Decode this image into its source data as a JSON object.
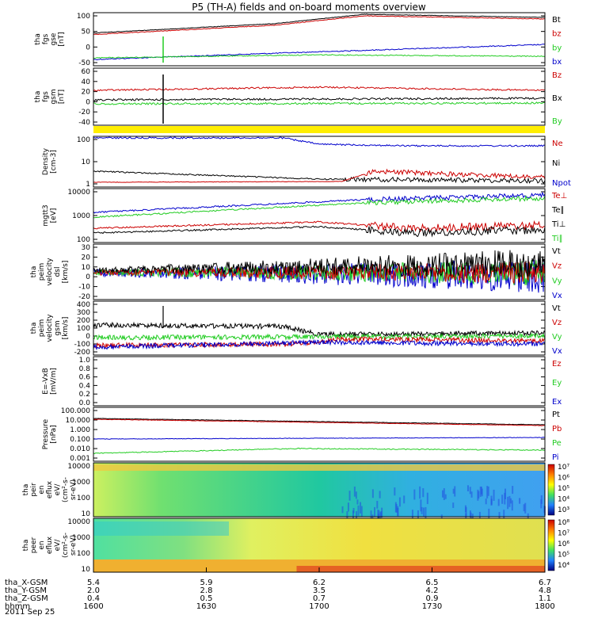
{
  "title": "P5 (TH-A) fields and on-board moments overview",
  "date": "2011 Sep 25",
  "colors": {
    "black": "#000000",
    "red": "#cc0000",
    "green": "#22cc22",
    "blue": "#0000cc",
    "yellow": "#ffee00"
  },
  "panels": [
    {
      "id": "fgs_gse",
      "ylabel": [
        "tha",
        "fgs",
        "gse",
        "[nT]"
      ],
      "yticks": [
        "100",
        "50",
        "0",
        "-50"
      ],
      "legend": [
        {
          "text": "Bt",
          "color": "black"
        },
        {
          "text": "bz",
          "color": "red"
        },
        {
          "text": "by",
          "color": "green"
        },
        {
          "text": "bx",
          "color": "blue"
        }
      ]
    },
    {
      "id": "fgs_gsm",
      "ylabel": [
        "tha",
        "fgs",
        "gsm",
        "[nT]"
      ],
      "yticks": [
        "60",
        "40",
        "20",
        "0",
        "-20",
        "-40"
      ],
      "legend": [
        {
          "text": "Bz",
          "color": "red"
        },
        {
          "text": "Bx",
          "color": "black"
        },
        {
          "text": "By",
          "color": "green"
        }
      ]
    },
    {
      "id": "density",
      "ylabel": [
        "Density",
        "[cm-3]"
      ],
      "yticks": [
        "100",
        "10",
        "1"
      ],
      "legend": [
        {
          "text": "Ne",
          "color": "red"
        },
        {
          "text": "Ni",
          "color": "black"
        },
        {
          "text": "Npot",
          "color": "blue"
        }
      ]
    },
    {
      "id": "temp",
      "ylabel": [
        "mgtt3",
        "[eV]"
      ],
      "yticks": [
        "10000",
        "1000",
        "100"
      ],
      "legend": [
        {
          "text": "Te⊥",
          "color": "red"
        },
        {
          "text": "Te∥",
          "color": "black"
        },
        {
          "text": "Ti⊥",
          "color": "black"
        },
        {
          "text": "Ti∥",
          "color": "green"
        }
      ]
    },
    {
      "id": "vel_dsl",
      "ylabel": [
        "tha",
        "peim",
        "velocity",
        "dsl",
        "[km/s]"
      ],
      "yticks": [
        "30",
        "20",
        "10",
        "0",
        "-10",
        "-20"
      ],
      "legend": [
        {
          "text": "Vt",
          "color": "black"
        },
        {
          "text": "Vz",
          "color": "red"
        },
        {
          "text": "Vy",
          "color": "green"
        },
        {
          "text": "Vx",
          "color": "blue"
        }
      ]
    },
    {
      "id": "vel_gsm",
      "ylabel": [
        "tha",
        "peim",
        "velocity",
        "gsm",
        "[km/s]"
      ],
      "yticks": [
        "400",
        "300",
        "200",
        "100",
        "0",
        "-100",
        "-200"
      ],
      "legend": [
        {
          "text": "Vt",
          "color": "black"
        },
        {
          "text": "Vz",
          "color": "red"
        },
        {
          "text": "Vy",
          "color": "green"
        },
        {
          "text": "Vx",
          "color": "blue"
        }
      ]
    },
    {
      "id": "efield",
      "ylabel": [
        "E=-VxB",
        "[mV/m]"
      ],
      "yticks": [
        "1.0",
        "0.8",
        "0.6",
        "0.4",
        "0.2",
        "0.0"
      ],
      "legend": [
        {
          "text": "Ez",
          "color": "red"
        },
        {
          "text": "Ey",
          "color": "green"
        },
        {
          "text": "Ex",
          "color": "blue"
        }
      ]
    },
    {
      "id": "pressure",
      "ylabel": [
        "Pressure",
        "[nPa]"
      ],
      "yticks": [
        "100.000",
        "10.000",
        "1.000",
        "0.100",
        "0.010",
        "0.001"
      ],
      "legend": [
        {
          "text": "Pt",
          "color": "black"
        },
        {
          "text": "Pb",
          "color": "red"
        },
        {
          "text": "Pe",
          "color": "green"
        },
        {
          "text": "Pi",
          "color": "blue"
        }
      ]
    },
    {
      "id": "peir",
      "ylabel": [
        "tha",
        "peir",
        "en",
        "eflux",
        "eV/",
        "(cm²-s-",
        "sr-eV)"
      ],
      "yticks": [
        "10000",
        "1000",
        "100",
        "10"
      ],
      "colorbar": [
        "10⁷",
        "10⁶",
        "10⁵",
        "10⁴",
        "10³"
      ]
    },
    {
      "id": "peer",
      "ylabel": [
        "tha",
        "peer",
        "en",
        "eflux",
        "eV/",
        "(cm²-s-",
        "sr-eV)"
      ],
      "yticks": [
        "10000",
        "1000",
        "100",
        "10"
      ],
      "colorbar": [
        "10⁸",
        "10⁷",
        "10⁶",
        "10⁵",
        "10⁴"
      ]
    }
  ],
  "xaxis": {
    "rows": [
      {
        "label": "tha_X-GSM",
        "values": [
          "5.4",
          "5.9",
          "6.2",
          "6.5",
          "6.7"
        ]
      },
      {
        "label": "tha_Y-GSM",
        "values": [
          "2.0",
          "2.8",
          "3.5",
          "4.2",
          "4.8"
        ]
      },
      {
        "label": "tha_Z-GSM",
        "values": [
          "0.4",
          "0.5",
          "0.7",
          "0.9",
          "1.1"
        ]
      },
      {
        "label": "hhmm",
        "values": [
          "1600",
          "1630",
          "1700",
          "1730",
          "1800"
        ]
      }
    ]
  },
  "chart_data": [
    {
      "type": "line",
      "title": "P5 (TH-A) fields and on-board moments overview",
      "ylabel": "tha fgs gse [nT]",
      "ylim": [
        -70,
        110
      ],
      "x": [
        "1600",
        "1630",
        "1700",
        "1730",
        "1800"
      ],
      "series": [
        {
          "name": "Bt",
          "values": [
            40,
            60,
            80,
            95,
            100
          ]
        },
        {
          "name": "bz",
          "values": [
            35,
            55,
            75,
            90,
            95
          ]
        },
        {
          "name": "by",
          "values": [
            -30,
            -20,
            -15,
            -20,
            -20
          ]
        },
        {
          "name": "bx",
          "values": [
            -40,
            -25,
            -5,
            2,
            5
          ]
        }
      ]
    },
    {
      "type": "line",
      "ylabel": "tha fgs gsm [nT]",
      "ylim": [
        -50,
        60
      ],
      "x": [
        "1600",
        "1630",
        "1700",
        "1730",
        "1800"
      ],
      "series": [
        {
          "name": "Bz",
          "values": [
            20,
            22,
            24,
            24,
            23
          ]
        },
        {
          "name": "Bx",
          "values": [
            10,
            10,
            12,
            12,
            10
          ]
        },
        {
          "name": "By",
          "values": [
            2,
            3,
            4,
            4,
            3
          ]
        }
      ]
    },
    {
      "type": "line",
      "ylabel": "Density [cm-3]",
      "ylim": [
        0.3,
        200
      ],
      "x": [
        "1600",
        "1630",
        "1700",
        "1730",
        "1800"
      ],
      "series": [
        {
          "name": "Ne",
          "values": [
            0.7,
            0.7,
            0.8,
            2,
            1.2
          ]
        },
        {
          "name": "Ni",
          "values": [
            2,
            1.3,
            0.8,
            0.5,
            0.6
          ]
        },
        {
          "name": "Npot",
          "values": [
            null,
            null,
            150,
            80,
            60
          ]
        }
      ]
    },
    {
      "type": "line",
      "ylabel": "mgtt3 [eV]",
      "ylim": [
        50,
        15000
      ],
      "x": [
        "1600",
        "1630",
        "1700",
        "1730",
        "1800"
      ],
      "series": [
        {
          "name": "Te⊥",
          "values": [
            100,
            150,
            200,
            150,
            150
          ]
        },
        {
          "name": "Te∥",
          "values": [
            80,
            120,
            170,
            120,
            130
          ]
        },
        {
          "name": "Ti⊥",
          "values": [
            800,
            2000,
            4000,
            5000,
            6000
          ]
        },
        {
          "name": "Ti∥",
          "values": [
            500,
            1500,
            3000,
            4000,
            5000
          ]
        }
      ]
    },
    {
      "type": "line",
      "ylabel": "tha peim velocity dsl [km/s]",
      "ylim": [
        -25,
        35
      ],
      "x": [
        "1600",
        "1630",
        "1700",
        "1730",
        "1800"
      ],
      "series": [
        {
          "name": "Vt",
          "values": [
            5,
            8,
            12,
            15,
            15
          ]
        },
        {
          "name": "Vz",
          "values": [
            0,
            0,
            0,
            0,
            0
          ]
        },
        {
          "name": "Vy",
          "values": [
            0,
            0,
            0,
            0,
            0
          ]
        },
        {
          "name": "Vx",
          "values": [
            0,
            -2,
            -3,
            -4,
            -4
          ]
        }
      ]
    },
    {
      "type": "line",
      "ylabel": "tha peim velocity gsm [km/s]",
      "ylim": [
        -220,
        400
      ],
      "x": [
        "1600",
        "1630",
        "1700",
        "1730",
        "1800"
      ],
      "series": [
        {
          "name": "Vt",
          "values": [
            120,
            130,
            50,
            40,
            60
          ]
        },
        {
          "name": "Vz",
          "values": [
            -100,
            -90,
            -30,
            0,
            10
          ]
        },
        {
          "name": "Vy",
          "values": [
            0,
            10,
            20,
            20,
            30
          ]
        },
        {
          "name": "Vx",
          "values": [
            -120,
            -100,
            -60,
            -60,
            -30
          ]
        }
      ]
    },
    {
      "type": "line",
      "ylabel": "E=-VxB [mV/m]",
      "ylim": [
        0,
        1
      ],
      "series": [
        {
          "name": "Ez",
          "values": []
        },
        {
          "name": "Ey",
          "values": []
        },
        {
          "name": "Ex",
          "values": []
        }
      ]
    },
    {
      "type": "line",
      "ylabel": "Pressure [nPa]",
      "ylim": [
        0.001,
        100
      ],
      "x": [
        "1600",
        "1630",
        "1700",
        "1730",
        "1800"
      ],
      "series": [
        {
          "name": "Pt",
          "values": [
            20,
            12,
            6,
            3,
            2.5
          ]
        },
        {
          "name": "Pb",
          "values": [
            20,
            12,
            6,
            3,
            2.5
          ]
        },
        {
          "name": "Pe",
          "values": [
            0.2,
            0.2,
            0.25,
            0.25,
            0.3
          ]
        },
        {
          "name": "Pi",
          "values": [
            0.008,
            0.01,
            0.03,
            0.02,
            0.02
          ]
        }
      ]
    },
    {
      "type": "heatmap",
      "ylabel": "tha peir en eflux",
      "ylim": [
        10,
        10000
      ],
      "colorbar": [
        1000,
        10000000
      ]
    },
    {
      "type": "heatmap",
      "ylabel": "tha peer en eflux",
      "ylim": [
        10,
        10000
      ],
      "colorbar": [
        10000,
        100000000
      ]
    }
  ]
}
